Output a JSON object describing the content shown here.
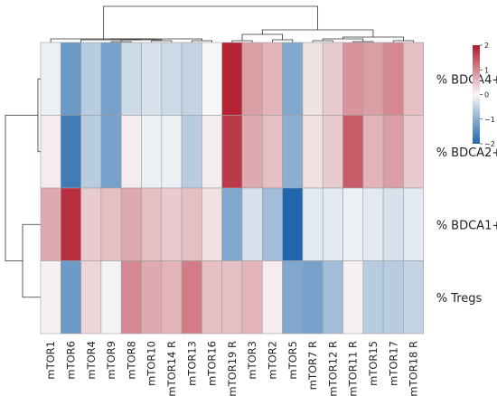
{
  "chart_data": {
    "type": "heatmap",
    "title": "",
    "xlabel": "",
    "ylabel": "",
    "x_labels": [
      "mTOR1",
      "mTOR6",
      "mTOR4",
      "mTOR9",
      "mTOR8",
      "mTOR10",
      "mTOR14 R",
      "mTOR13",
      "mTOR16",
      "mTOR19 R",
      "mTOR3",
      "mTOR2",
      "mTOR5",
      "mTOR7 R",
      "mTOR12 R",
      "mTOR11 R",
      "mTOR15",
      "mTOR17",
      "mTOR18 R"
    ],
    "y_labels": [
      "% BDCA4+",
      "% BDCA2+",
      "% BDCA1+",
      "% Tregs"
    ],
    "values": [
      [
        -0.1,
        -1.3,
        -0.6,
        -1.2,
        -0.4,
        -0.3,
        -0.4,
        -0.5,
        0.0,
        1.9,
        0.8,
        0.6,
        -1.1,
        0.2,
        0.4,
        0.9,
        0.8,
        1.0,
        0.5
      ],
      [
        0.1,
        -1.7,
        -0.6,
        -1.2,
        0.1,
        -0.1,
        -0.1,
        -0.6,
        0.1,
        1.7,
        0.7,
        0.5,
        -1.0,
        0.2,
        0.4,
        1.4,
        0.6,
        0.8,
        0.4
      ],
      [
        0.7,
        1.8,
        0.4,
        0.5,
        0.7,
        0.5,
        0.4,
        0.5,
        0.2,
        -1.1,
        -0.3,
        -0.8,
        -2.0,
        -0.2,
        -0.2,
        -0.1,
        -0.2,
        -0.3,
        -0.2
      ],
      [
        0.05,
        -1.3,
        0.3,
        -0.05,
        1.0,
        0.7,
        0.6,
        1.1,
        0.5,
        0.5,
        0.6,
        0.1,
        -1.1,
        -1.2,
        -0.8,
        0.05,
        -0.6,
        -0.6,
        -0.5
      ]
    ],
    "colorbar": {
      "min": -2,
      "max": 2,
      "ticks": [
        2,
        1,
        0,
        -1,
        -2
      ],
      "tick_labels": [
        "2",
        "1",
        "0",
        "−1",
        "−2"
      ],
      "colors": {
        "low": "#2166ac",
        "mid": "#f7f7f7",
        "high": "#b2182b"
      }
    },
    "grid": true,
    "legend": "top-right colorbar",
    "dendrograms": {
      "columns": "top",
      "rows": "left"
    }
  }
}
